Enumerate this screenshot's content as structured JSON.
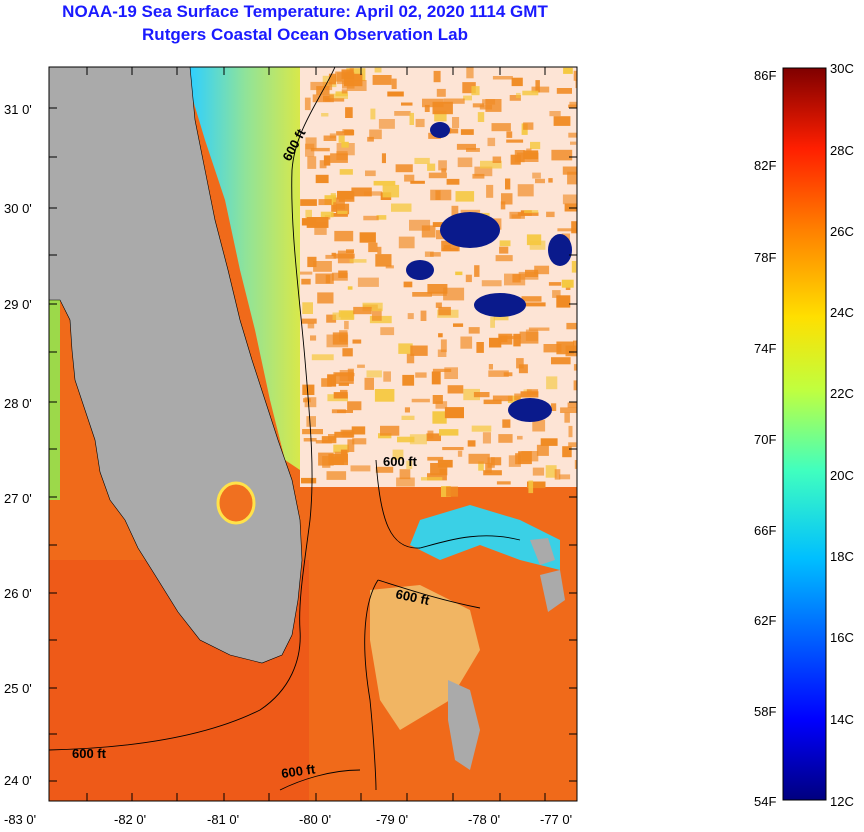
{
  "title": {
    "line1": "NOAA-19 Sea Surface Temperature:  April 02, 2020 1114 GMT",
    "line2": "Rutgers Coastal Ocean Observation Lab"
  },
  "map": {
    "lat_labels": [
      "31 0'",
      "30 0'",
      "29 0'",
      "28 0'",
      "27 0'",
      "26 0'",
      "25 0'",
      "24 0'"
    ],
    "lon_labels": [
      "-83 0'",
      "-82 0'",
      "-81 0'",
      "-80 0'",
      "-79 0'",
      "-78 0'",
      "-77 0'"
    ],
    "contour_label": "600 ft",
    "colors": {
      "land": "#aaaaaa",
      "warm": "#f26a1b",
      "cloud": "#ffffff",
      "cold_shelf": "#5cc6e0"
    }
  },
  "colorbar": {
    "f_labels": [
      "86F",
      "82F",
      "78F",
      "74F",
      "70F",
      "66F",
      "62F",
      "58F",
      "54F"
    ],
    "c_labels": [
      "30C",
      "28C",
      "26C",
      "24C",
      "22C",
      "20C",
      "18C",
      "16C",
      "14C",
      "12C"
    ]
  }
}
